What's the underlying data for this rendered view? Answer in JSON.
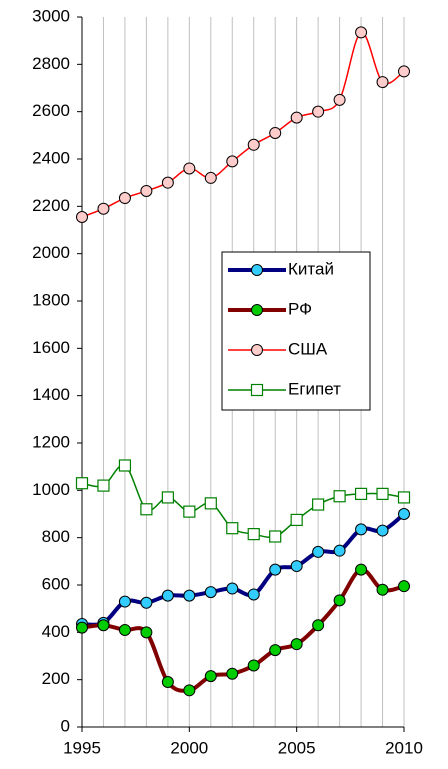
{
  "chart_data": {
    "type": "line",
    "x": [
      1995,
      1996,
      1997,
      1998,
      1999,
      2000,
      2001,
      2002,
      2003,
      2004,
      2005,
      2006,
      2007,
      2008,
      2009,
      2010
    ],
    "xlim": [
      1995,
      2010
    ],
    "xticks": [
      1995,
      2000,
      2005,
      2010
    ],
    "ylim": [
      0,
      3000
    ],
    "yticks": [
      0,
      200,
      400,
      600,
      800,
      1000,
      1200,
      1400,
      1600,
      1800,
      2000,
      2200,
      2400,
      2600,
      2800,
      3000
    ],
    "grid": "x",
    "legend": "right",
    "series": [
      {
        "name": "Китай",
        "color": "#000080",
        "marker": "circle",
        "marker_color": "#33ccff",
        "line_width": 4,
        "values": [
          435,
          440,
          530,
          525,
          555,
          555,
          570,
          585,
          560,
          665,
          680,
          740,
          745,
          835,
          830,
          900
        ]
      },
      {
        "name": "РФ",
        "color": "#800000",
        "marker": "circle",
        "marker_color": "#00cc00",
        "line_width": 4,
        "values": [
          420,
          430,
          410,
          400,
          190,
          155,
          215,
          225,
          260,
          325,
          350,
          430,
          535,
          665,
          580,
          595
        ]
      },
      {
        "name": "США",
        "color": "#ff0000",
        "marker": "circle",
        "marker_color": "#ffcccc",
        "line_width": 1.5,
        "values": [
          2155,
          2190,
          2235,
          2265,
          2300,
          2360,
          2320,
          2390,
          2460,
          2510,
          2575,
          2600,
          2650,
          2935,
          2725,
          2770
        ]
      },
      {
        "name": "Египет",
        "color": "#008000",
        "marker": "square",
        "marker_color": "#ffffff",
        "line_width": 1.5,
        "values": [
          1030,
          1020,
          1105,
          920,
          970,
          910,
          945,
          840,
          815,
          805,
          875,
          940,
          975,
          985,
          985,
          970
        ]
      }
    ]
  }
}
